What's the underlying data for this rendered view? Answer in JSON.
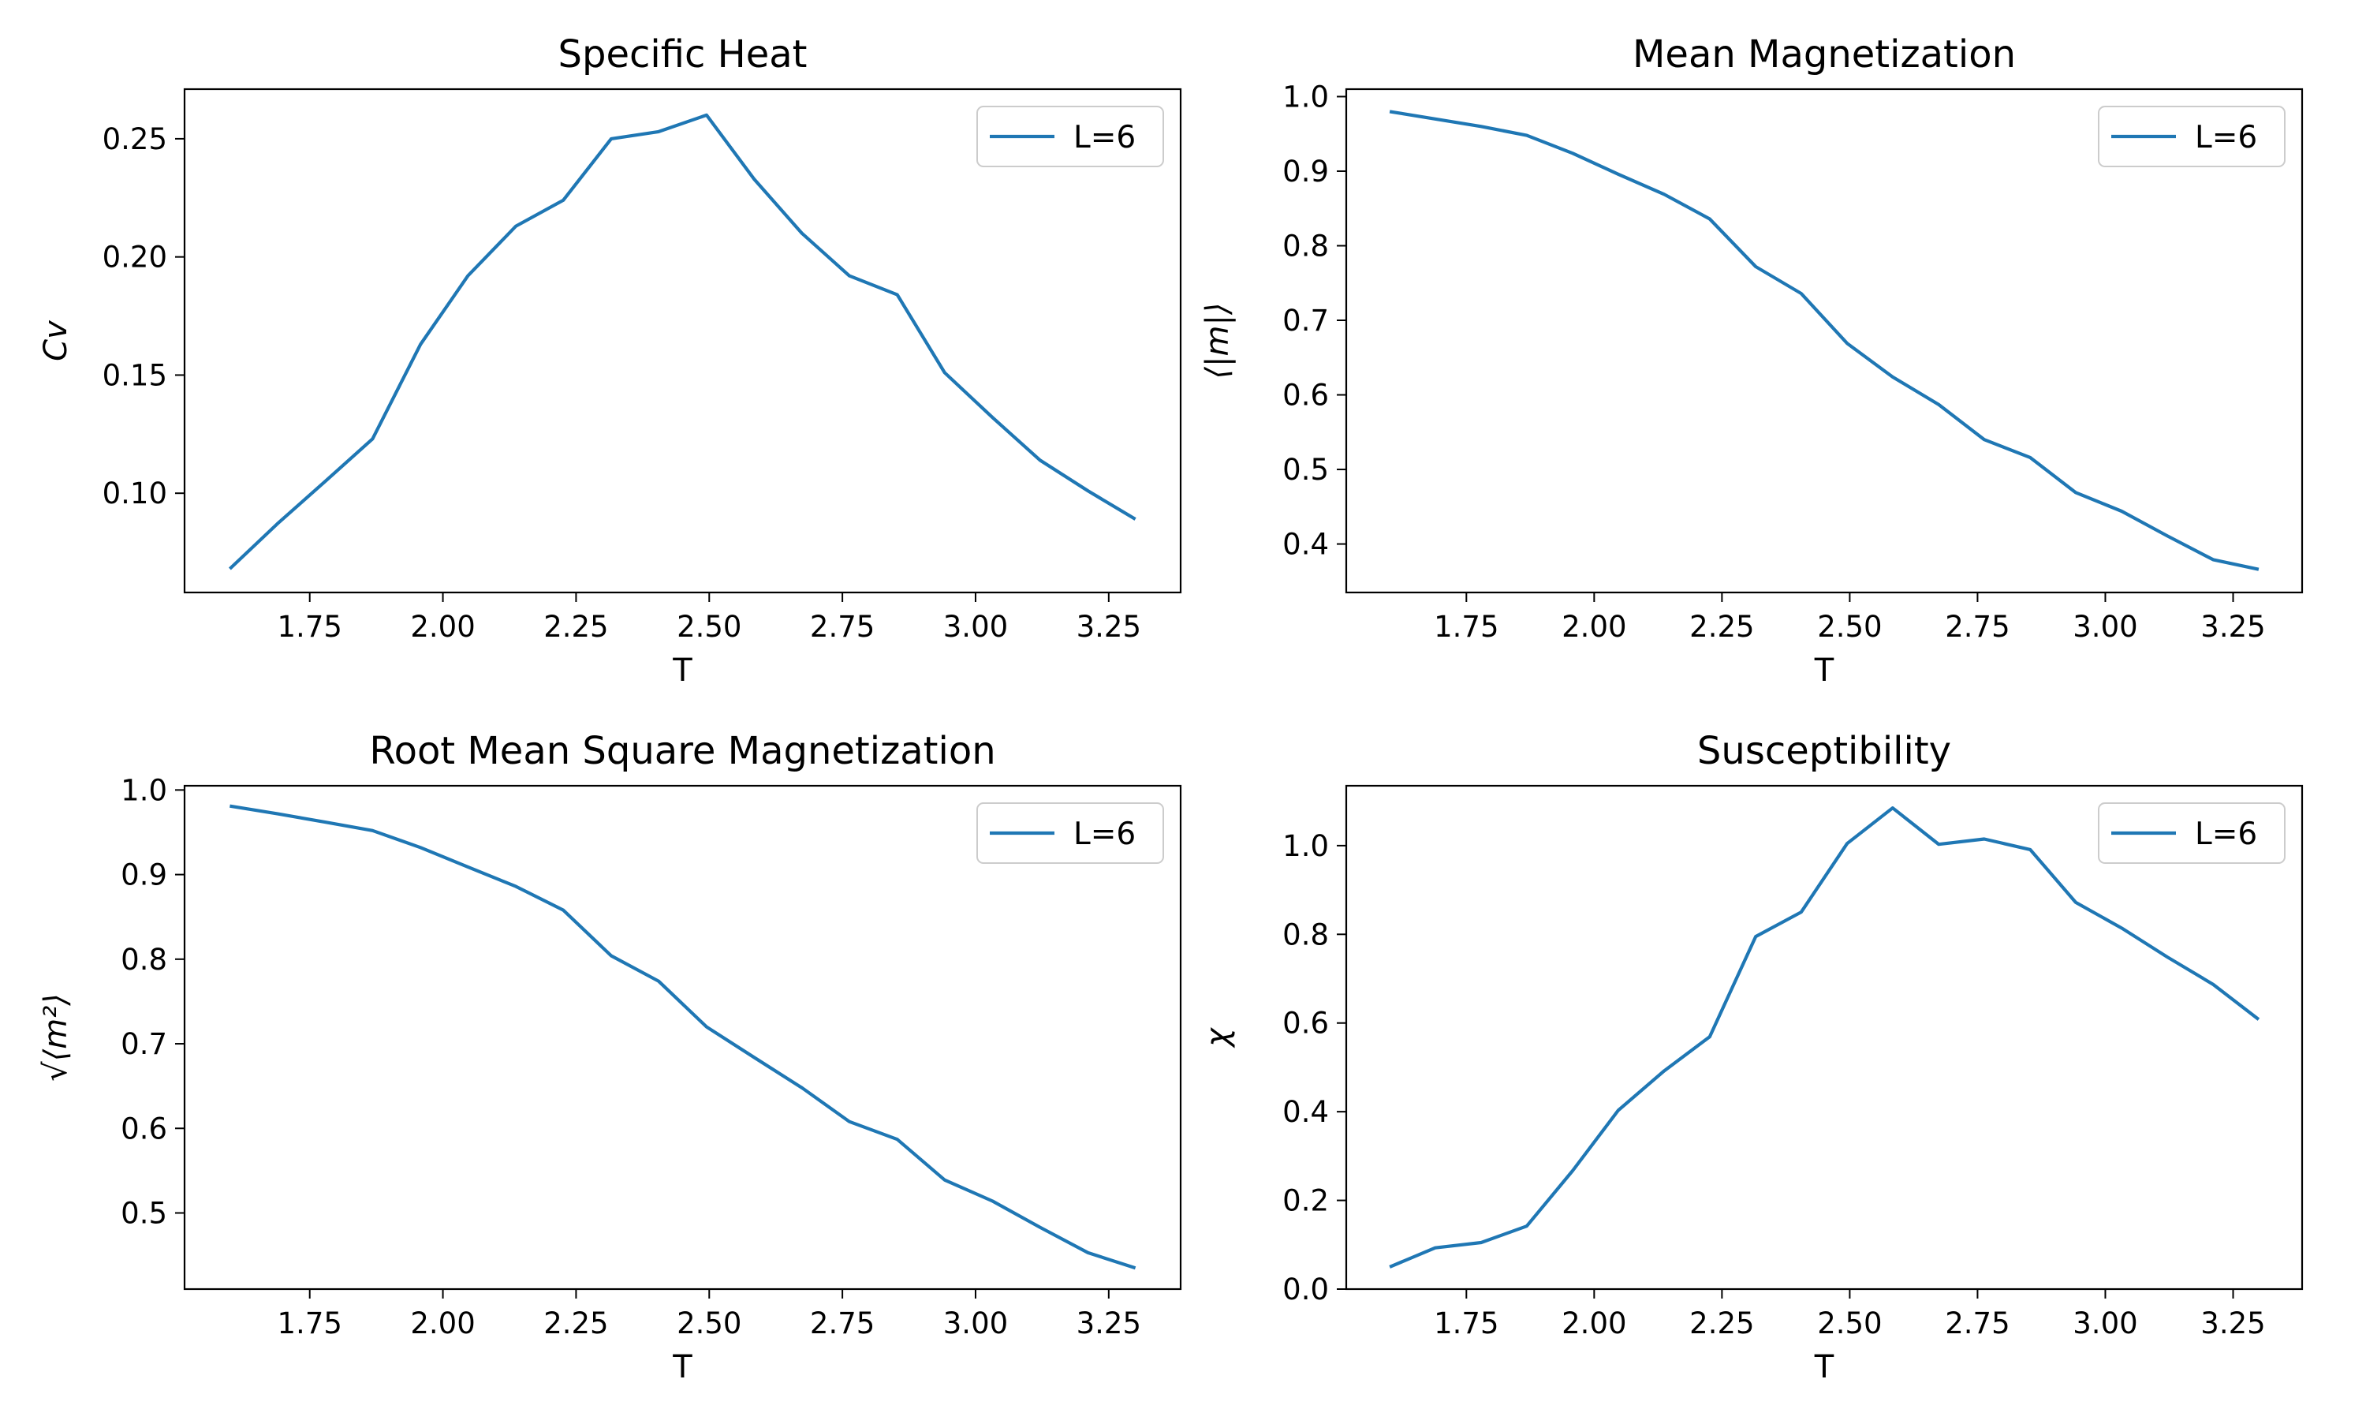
{
  "line_color": "#1f77b4",
  "chart_data": [
    {
      "type": "line",
      "title": "Specific Heat",
      "xlabel": "T",
      "ylabel": "Cv",
      "legend": "top-right",
      "grid": false,
      "xlim": [
        1.515,
        3.385
      ],
      "ylim": [
        0.058,
        0.271
      ],
      "xticks": [
        1.75,
        2.0,
        2.25,
        2.5,
        2.75,
        3.0,
        3.25
      ],
      "xtick_labels": [
        "1.75",
        "2.00",
        "2.25",
        "2.50",
        "2.75",
        "3.00",
        "3.25"
      ],
      "yticks": [
        0.1,
        0.15,
        0.2,
        0.25
      ],
      "ytick_labels": [
        "0.10",
        "0.15",
        "0.20",
        "0.25"
      ],
      "x": [
        1.6,
        1.689,
        1.779,
        1.868,
        1.958,
        2.047,
        2.137,
        2.226,
        2.316,
        2.405,
        2.495,
        2.584,
        2.674,
        2.763,
        2.853,
        2.942,
        3.032,
        3.121,
        3.211,
        3.3
      ],
      "series": [
        {
          "name": "L=6",
          "values": [
            0.068,
            0.087,
            0.105,
            0.123,
            0.163,
            0.192,
            0.213,
            0.224,
            0.25,
            0.253,
            0.26,
            0.233,
            0.21,
            0.192,
            0.184,
            0.151,
            0.132,
            0.114,
            0.101,
            0.089
          ]
        }
      ]
    },
    {
      "type": "line",
      "title": "Mean Magnetization",
      "xlabel": "T",
      "ylabel": "⟨|m|⟩",
      "legend": "top-right",
      "grid": false,
      "xlim": [
        1.515,
        3.385
      ],
      "ylim": [
        0.335,
        1.01
      ],
      "xticks": [
        1.75,
        2.0,
        2.25,
        2.5,
        2.75,
        3.0,
        3.25
      ],
      "xtick_labels": [
        "1.75",
        "2.00",
        "2.25",
        "2.50",
        "2.75",
        "3.00",
        "3.25"
      ],
      "yticks": [
        0.4,
        0.5,
        0.6,
        0.7,
        0.8,
        0.9,
        1.0
      ],
      "ytick_labels": [
        "0.4",
        "0.5",
        "0.6",
        "0.7",
        "0.8",
        "0.9",
        "1.0"
      ],
      "x": [
        1.6,
        1.689,
        1.779,
        1.868,
        1.958,
        2.047,
        2.137,
        2.226,
        2.316,
        2.405,
        2.495,
        2.584,
        2.674,
        2.763,
        2.853,
        2.942,
        3.032,
        3.121,
        3.211,
        3.3
      ],
      "series": [
        {
          "name": "L=6",
          "values": [
            0.98,
            0.97,
            0.96,
            0.948,
            0.924,
            0.896,
            0.869,
            0.836,
            0.772,
            0.736,
            0.669,
            0.624,
            0.587,
            0.54,
            0.516,
            0.469,
            0.444,
            0.411,
            0.379,
            0.366
          ]
        }
      ]
    },
    {
      "type": "line",
      "title": "Root Mean Square Magnetization",
      "xlabel": "T",
      "ylabel": "√⟨m²⟩",
      "legend": "top-right",
      "grid": false,
      "xlim": [
        1.515,
        3.385
      ],
      "ylim": [
        0.41,
        1.005
      ],
      "xticks": [
        1.75,
        2.0,
        2.25,
        2.5,
        2.75,
        3.0,
        3.25
      ],
      "xtick_labels": [
        "1.75",
        "2.00",
        "2.25",
        "2.50",
        "2.75",
        "3.00",
        "3.25"
      ],
      "yticks": [
        0.5,
        0.6,
        0.7,
        0.8,
        0.9,
        1.0
      ],
      "ytick_labels": [
        "0.5",
        "0.6",
        "0.7",
        "0.8",
        "0.9",
        "1.0"
      ],
      "x": [
        1.6,
        1.689,
        1.779,
        1.868,
        1.958,
        2.047,
        2.137,
        2.226,
        2.316,
        2.405,
        2.495,
        2.584,
        2.674,
        2.763,
        2.853,
        2.942,
        3.032,
        3.121,
        3.211,
        3.3
      ],
      "series": [
        {
          "name": "L=6",
          "values": [
            0.981,
            0.972,
            0.962,
            0.952,
            0.932,
            0.909,
            0.886,
            0.858,
            0.804,
            0.774,
            0.72,
            0.684,
            0.648,
            0.608,
            0.587,
            0.539,
            0.514,
            0.483,
            0.453,
            0.435
          ]
        }
      ]
    },
    {
      "type": "line",
      "title": "Susceptibility",
      "xlabel": "T",
      "ylabel": "χ",
      "legend": "top-right",
      "grid": false,
      "xlim": [
        1.515,
        3.385
      ],
      "ylim": [
        0.0,
        1.135
      ],
      "xticks": [
        1.75,
        2.0,
        2.25,
        2.5,
        2.75,
        3.0,
        3.25
      ],
      "xtick_labels": [
        "1.75",
        "2.00",
        "2.25",
        "2.50",
        "2.75",
        "3.00",
        "3.25"
      ],
      "yticks": [
        0.0,
        0.2,
        0.4,
        0.6,
        0.8,
        1.0
      ],
      "ytick_labels": [
        "0.0",
        "0.2",
        "0.4",
        "0.6",
        "0.8",
        "1.0"
      ],
      "x": [
        1.6,
        1.689,
        1.779,
        1.868,
        1.958,
        2.047,
        2.137,
        2.226,
        2.316,
        2.405,
        2.495,
        2.584,
        2.674,
        2.763,
        2.853,
        2.942,
        3.032,
        3.121,
        3.211,
        3.3
      ],
      "series": [
        {
          "name": "L=6",
          "values": [
            0.05,
            0.093,
            0.105,
            0.142,
            0.267,
            0.403,
            0.492,
            0.569,
            0.795,
            0.85,
            1.005,
            1.085,
            1.003,
            1.015,
            0.991,
            0.872,
            0.814,
            0.749,
            0.687,
            0.608
          ]
        }
      ]
    }
  ]
}
